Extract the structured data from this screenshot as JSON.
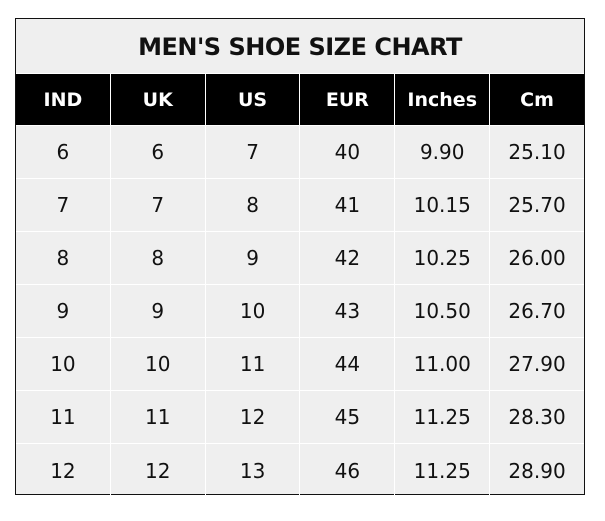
{
  "title": "MEN'S SHOE SIZE CHART",
  "colors": {
    "header_bg": "#000000",
    "header_text": "#ffffff",
    "body_bg": "#efefef",
    "grid": "#ffffff"
  },
  "columns": [
    "IND",
    "UK",
    "US",
    "EUR",
    "Inches",
    "Cm"
  ],
  "rows": [
    [
      "6",
      "6",
      "7",
      "40",
      "9.90",
      "25.10"
    ],
    [
      "7",
      "7",
      "8",
      "41",
      "10.15",
      "25.70"
    ],
    [
      "8",
      "8",
      "9",
      "42",
      "10.25",
      "26.00"
    ],
    [
      "9",
      "9",
      "10",
      "43",
      "10.50",
      "26.70"
    ],
    [
      "10",
      "10",
      "11",
      "44",
      "11.00",
      "27.90"
    ],
    [
      "11",
      "11",
      "12",
      "45",
      "11.25",
      "28.30"
    ],
    [
      "12",
      "12",
      "13",
      "46",
      "11.25",
      "28.90"
    ]
  ]
}
